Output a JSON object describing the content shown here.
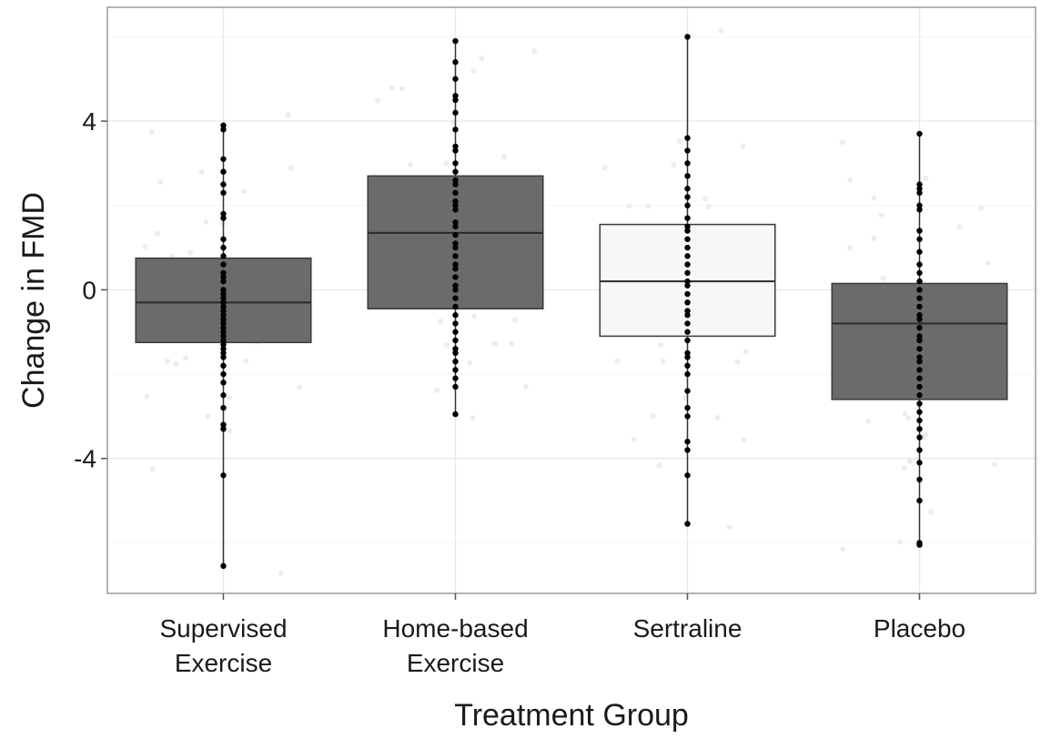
{
  "chart_data": {
    "type": "box",
    "title": "",
    "xlabel": "Treatment Group",
    "ylabel": "Change in FMD",
    "ylim": [
      -7.2,
      6.7
    ],
    "yticks": [
      -4,
      0,
      4
    ],
    "grid": true,
    "legend": "none",
    "categories": [
      {
        "line1": "Supervised",
        "line2": "Exercise"
      },
      {
        "line1": "Home-based",
        "line2": "Exercise"
      },
      {
        "line1": "Sertraline",
        "line2": ""
      },
      {
        "line1": "Placebo",
        "line2": ""
      }
    ],
    "boxes": [
      {
        "q1": -1.25,
        "median": -0.3,
        "q3": 0.75,
        "whisker_low": -6.55,
        "whisker_high": 3.9,
        "fill": "#6b6b6b"
      },
      {
        "q1": -0.45,
        "median": 1.35,
        "q3": 2.7,
        "whisker_low": -2.95,
        "whisker_high": 5.9,
        "fill": "#6b6b6b"
      },
      {
        "q1": -1.1,
        "median": 0.2,
        "q3": 1.55,
        "whisker_low": -5.55,
        "whisker_high": 6.0,
        "fill": "#f7f7f7"
      },
      {
        "q1": -2.6,
        "median": -0.8,
        "q3": 0.15,
        "whisker_low": -6.05,
        "whisker_high": 3.7,
        "fill": "#6b6b6b"
      }
    ],
    "points": [
      [
        3.9,
        3.8,
        3.1,
        2.8,
        2.5,
        2.3,
        1.8,
        1.7,
        1.2,
        1.0,
        0.8,
        0.6,
        0.4,
        0.3,
        0.2,
        0.0,
        -0.1,
        -0.2,
        -0.3,
        -0.4,
        -0.5,
        -0.6,
        -0.7,
        -0.8,
        -0.9,
        -1.0,
        -1.1,
        -1.2,
        -1.3,
        -1.4,
        -1.5,
        -1.6,
        -1.8,
        -2.0,
        -2.2,
        -2.5,
        -2.8,
        -3.2,
        -3.3,
        -4.4,
        -6.55
      ],
      [
        5.9,
        5.4,
        5.0,
        4.6,
        4.5,
        4.2,
        3.8,
        3.4,
        3.3,
        3.0,
        2.8,
        2.6,
        2.5,
        2.3,
        2.1,
        2.0,
        1.9,
        1.6,
        1.5,
        1.3,
        1.1,
        1.0,
        0.8,
        0.6,
        0.5,
        0.3,
        0.1,
        0.0,
        -0.2,
        -0.4,
        -0.6,
        -0.8,
        -1.0,
        -1.2,
        -1.4,
        -1.5,
        -1.7,
        -1.9,
        -2.1,
        -2.3,
        -2.95
      ],
      [
        6.0,
        3.6,
        3.3,
        3.0,
        2.7,
        2.4,
        2.2,
        2.0,
        1.7,
        1.5,
        1.4,
        1.2,
        1.0,
        0.8,
        0.6,
        0.4,
        0.2,
        0.1,
        -0.1,
        -0.3,
        -0.5,
        -0.6,
        -0.8,
        -1.0,
        -1.2,
        -1.5,
        -1.6,
        -1.8,
        -2.0,
        -2.4,
        -2.8,
        -3.0,
        -3.6,
        -3.8,
        -4.4,
        -5.55
      ],
      [
        3.7,
        2.5,
        2.4,
        2.3,
        2.0,
        1.9,
        1.4,
        1.2,
        0.9,
        0.6,
        0.4,
        0.2,
        0.0,
        -0.2,
        -0.4,
        -0.6,
        -0.7,
        -0.9,
        -1.1,
        -1.2,
        -1.4,
        -1.6,
        -1.7,
        -1.9,
        -2.1,
        -2.3,
        -2.5,
        -2.7,
        -2.9,
        -3.1,
        -3.3,
        -3.5,
        -3.8,
        -4.1,
        -4.5,
        -5.0,
        -6.0,
        -6.05
      ]
    ]
  }
}
